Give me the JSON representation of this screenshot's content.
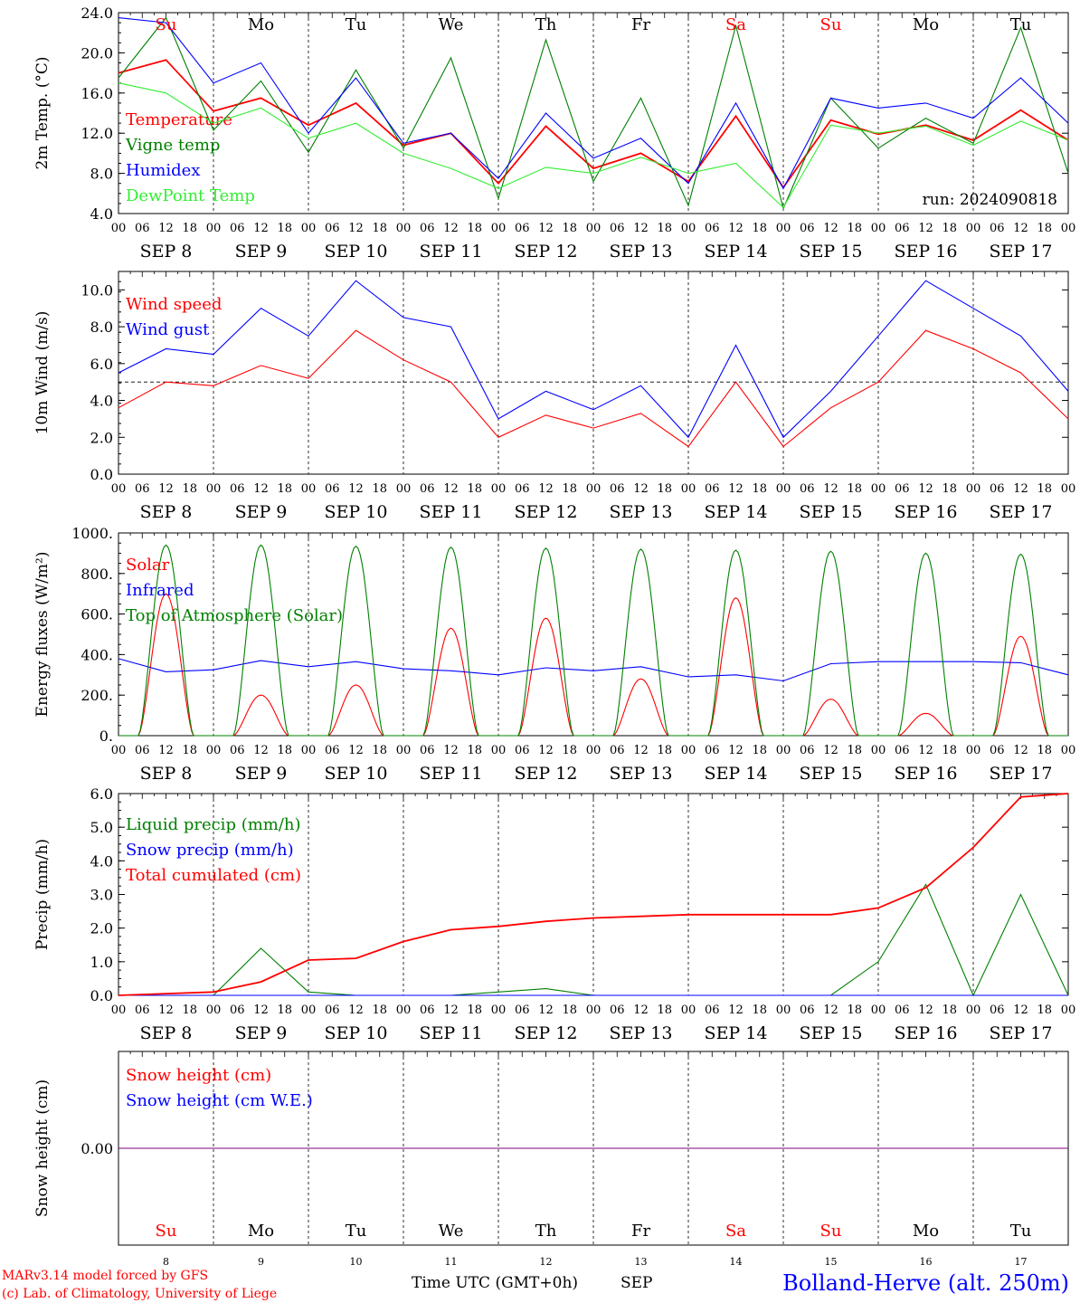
{
  "footer": {
    "model": "MARv3.14 model forced by GFS",
    "lab": "(c) Lab. of Climatology, University of Liege",
    "time_label": "Time UTC (GMT+0h)",
    "month": "SEP",
    "station": "Bolland-Herve (alt. 250m)"
  },
  "days": [
    {
      "abbr": "Su",
      "date": 8,
      "weekend": true
    },
    {
      "abbr": "Mo",
      "date": 9,
      "weekend": false
    },
    {
      "abbr": "Tu",
      "date": 10,
      "weekend": false
    },
    {
      "abbr": "We",
      "date": 11,
      "weekend": false
    },
    {
      "abbr": "Th",
      "date": 12,
      "weekend": false
    },
    {
      "abbr": "Fr",
      "date": 13,
      "weekend": false
    },
    {
      "abbr": "Sa",
      "date": 14,
      "weekend": true
    },
    {
      "abbr": "Su",
      "date": 15,
      "weekend": true
    },
    {
      "abbr": "Mo",
      "date": 16,
      "weekend": false
    },
    {
      "abbr": "Tu",
      "date": 17,
      "weekend": false
    }
  ],
  "hour_ticks": [
    "00",
    "06",
    "12",
    "18"
  ],
  "end_tick": "00",
  "colors": {
    "red": "#ff0000",
    "green": "#008000",
    "blue": "#0000ff",
    "lightgreen": "#33ee33",
    "purple": "#800080"
  },
  "chart_data": [
    {
      "type": "line",
      "ylabel": "2m Temp. (°C)",
      "ylim": [
        4,
        24
      ],
      "yticks": [
        "4.0",
        "8.0",
        "12.0",
        "16.0",
        "20.0",
        "24.0"
      ],
      "annotation": "run: 2024090818",
      "x": [
        "Sep 08 00h",
        "Sep 08 12h",
        "Sep 09 00h",
        "Sep 09 12h",
        "Sep 10 00h",
        "Sep 10 12h",
        "Sep 11 00h",
        "Sep 11 12h",
        "Sep 12 00h",
        "Sep 12 12h",
        "Sep 13 00h",
        "Sep 13 12h",
        "Sep 14 00h",
        "Sep 14 12h",
        "Sep 15 00h",
        "Sep 15 12h",
        "Sep 16 00h",
        "Sep 16 12h",
        "Sep 17 00h",
        "Sep 17 12h",
        "Sep 18 00h"
      ],
      "series": [
        {
          "name": "Temperature",
          "color": "#ff0000",
          "values": [
            18.0,
            19.3,
            14.2,
            15.5,
            12.8,
            15.0,
            10.8,
            12.0,
            7.0,
            12.7,
            8.5,
            10.0,
            7.2,
            13.7,
            6.6,
            13.3,
            11.9,
            12.8,
            11.3,
            14.3,
            11.3
          ]
        },
        {
          "name": "Vigne temp",
          "color": "#008000",
          "values": [
            17.5,
            23.5,
            12.3,
            17.2,
            10.1,
            18.3,
            10.5,
            19.5,
            5.5,
            21.3,
            7.2,
            15.5,
            4.8,
            22.7,
            4.5,
            15.5,
            10.5,
            13.5,
            11.0,
            22.5,
            8.0
          ]
        },
        {
          "name": "Humidex",
          "color": "#0000ff",
          "values": [
            23.5,
            23.0,
            17.0,
            19.0,
            12.0,
            17.5,
            11.0,
            12.0,
            7.5,
            14.0,
            9.5,
            11.5,
            7.0,
            15.0,
            6.5,
            15.5,
            14.5,
            15.0,
            13.5,
            17.5,
            13.0
          ]
        },
        {
          "name": "DewPoint Temp",
          "color": "#33ee33",
          "values": [
            17.0,
            16.0,
            13.0,
            14.5,
            11.5,
            13.0,
            10.0,
            8.5,
            6.5,
            8.6,
            8.0,
            9.6,
            8.0,
            9.0,
            4.6,
            12.8,
            12.0,
            12.7,
            10.8,
            13.2,
            11.3
          ]
        }
      ]
    },
    {
      "type": "line",
      "ylabel": "10m Wind (m/s)",
      "ylim": [
        0,
        11
      ],
      "yticks": [
        "0.0",
        "2.0",
        "4.0",
        "6.0",
        "8.0",
        "10.0"
      ],
      "reference_line": 5.0,
      "x": [
        "Sep 08 00h",
        "Sep 08 12h",
        "Sep 09 00h",
        "Sep 09 12h",
        "Sep 10 00h",
        "Sep 10 12h",
        "Sep 11 00h",
        "Sep 11 12h",
        "Sep 12 00h",
        "Sep 12 12h",
        "Sep 13 00h",
        "Sep 13 12h",
        "Sep 14 00h",
        "Sep 14 12h",
        "Sep 15 00h",
        "Sep 15 12h",
        "Sep 16 00h",
        "Sep 16 12h",
        "Sep 17 00h",
        "Sep 17 12h",
        "Sep 18 00h"
      ],
      "series": [
        {
          "name": "Wind speed",
          "color": "#ff0000",
          "values": [
            3.6,
            5.0,
            4.8,
            5.9,
            5.2,
            7.8,
            6.2,
            5.0,
            2.0,
            3.2,
            2.5,
            3.3,
            1.5,
            5.0,
            1.5,
            3.6,
            5.0,
            7.8,
            6.8,
            5.5,
            3.0
          ]
        },
        {
          "name": "Wind gust",
          "color": "#0000ff",
          "values": [
            5.5,
            6.8,
            6.5,
            9.0,
            7.5,
            10.5,
            8.5,
            8.0,
            3.0,
            4.5,
            3.5,
            4.8,
            2.0,
            7.0,
            2.0,
            4.5,
            7.5,
            10.5,
            9.0,
            7.5,
            4.5
          ]
        }
      ]
    },
    {
      "type": "line",
      "ylabel": "Energy fluxes (W/m²)",
      "ylim": [
        0,
        1000
      ],
      "yticks": [
        "0.",
        "200.",
        "400.",
        "600.",
        "800.",
        "1000."
      ],
      "x": [
        "Sep 08 00h",
        "Sep 08 12h",
        "Sep 09 00h",
        "Sep 09 12h",
        "Sep 10 00h",
        "Sep 10 12h",
        "Sep 11 00h",
        "Sep 11 12h",
        "Sep 12 00h",
        "Sep 12 12h",
        "Sep 13 00h",
        "Sep 13 12h",
        "Sep 14 00h",
        "Sep 14 12h",
        "Sep 15 00h",
        "Sep 15 12h",
        "Sep 16 00h",
        "Sep 16 12h",
        "Sep 17 00h",
        "Sep 17 12h",
        "Sep 18 00h"
      ],
      "series": [
        {
          "name": "Solar",
          "color": "#ff0000",
          "daily_peak": [
            700,
            200,
            250,
            530,
            580,
            280,
            680,
            180,
            110,
            490
          ]
        },
        {
          "name": "Infrared",
          "color": "#0000ff",
          "values": [
            380,
            315,
            325,
            370,
            340,
            365,
            330,
            320,
            300,
            335,
            320,
            340,
            290,
            300,
            270,
            355,
            365,
            365,
            365,
            360,
            300
          ]
        },
        {
          "name": "Top of Atmosphere (Solar)",
          "color": "#008000",
          "daily_peak": [
            940,
            940,
            935,
            930,
            925,
            920,
            915,
            910,
            900,
            895
          ]
        }
      ]
    },
    {
      "type": "line",
      "ylabel": "Precip (mm/h)",
      "ylim": [
        0,
        6
      ],
      "yticks": [
        "0.0",
        "1.0",
        "2.0",
        "3.0",
        "4.0",
        "5.0",
        "6.0"
      ],
      "x": [
        "Sep 08 00h",
        "Sep 08 12h",
        "Sep 09 00h",
        "Sep 09 12h",
        "Sep 10 00h",
        "Sep 10 12h",
        "Sep 11 00h",
        "Sep 11 12h",
        "Sep 12 00h",
        "Sep 12 12h",
        "Sep 13 00h",
        "Sep 13 12h",
        "Sep 14 00h",
        "Sep 14 12h",
        "Sep 15 00h",
        "Sep 15 12h",
        "Sep 16 00h",
        "Sep 16 12h",
        "Sep 17 00h",
        "Sep 17 12h",
        "Sep 18 00h"
      ],
      "series": [
        {
          "name": "Liquid precip (mm/h)",
          "color": "#008000",
          "values": [
            0.0,
            0.0,
            0.0,
            1.4,
            0.1,
            0.0,
            0.0,
            0.0,
            0.1,
            0.2,
            0.0,
            0.0,
            0.0,
            0.0,
            0.0,
            0.0,
            1.0,
            3.3,
            0.0,
            3.0,
            0.0
          ]
        },
        {
          "name": "Snow precip (mm/h)",
          "color": "#0000ff",
          "values": [
            0,
            0,
            0,
            0,
            0,
            0,
            0,
            0,
            0,
            0,
            0,
            0,
            0,
            0,
            0,
            0,
            0,
            0,
            0,
            0,
            0
          ]
        },
        {
          "name": "Total cumulated (cm)",
          "color": "#ff0000",
          "values": [
            0.0,
            0.05,
            0.1,
            0.4,
            1.05,
            1.1,
            1.6,
            1.95,
            2.05,
            2.2,
            2.3,
            2.35,
            2.4,
            2.4,
            2.4,
            2.4,
            2.6,
            3.2,
            4.4,
            5.9,
            6.0
          ]
        }
      ]
    },
    {
      "type": "line",
      "ylabel": "Snow height (cm)",
      "yticks": [
        "0.00"
      ],
      "x": [
        "Sep 08 00h",
        "Sep 18 00h"
      ],
      "series": [
        {
          "name": "Snow height (cm)",
          "color": "#ff0000",
          "values": [
            0,
            0
          ]
        },
        {
          "name": "Snow height (cm W.E.)",
          "color": "#0000ff",
          "values": [
            0,
            0
          ]
        }
      ]
    }
  ]
}
